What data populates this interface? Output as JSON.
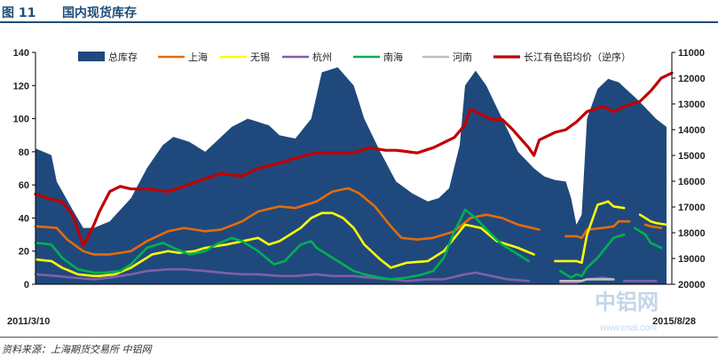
{
  "figure": {
    "number": "图 11",
    "title": "国内现货库存",
    "source": "资料来源：上海期货交易所    中铝网"
  },
  "watermark": {
    "brand": "中铝网",
    "url": "www.cnal.com"
  },
  "chart_data": {
    "type": "area",
    "title": "国内现货库存",
    "x_start_label": "2011/3/10",
    "x_end_label": "2015/8/28",
    "n_points": 121,
    "left_axis": {
      "ylim": [
        0,
        140
      ],
      "ticks": [
        0,
        20,
        40,
        60,
        80,
        100,
        120,
        140
      ]
    },
    "right_axis": {
      "ylim": [
        20000,
        11000
      ],
      "inverted": true,
      "ticks": [
        11000,
        12000,
        13000,
        14000,
        15000,
        16000,
        17000,
        18000,
        19000,
        20000
      ]
    },
    "colors": {
      "total": "#1f497d",
      "shanghai": "#e46c0a",
      "wuxi": "#ffff00",
      "hangzhou": "#7f5fa8",
      "nanhai": "#00b050",
      "henan": "#bfbfbf",
      "price": "#c00000",
      "axis": "#000000"
    },
    "series": [
      {
        "key": "total",
        "name": "总库存",
        "kind": "area",
        "axis": "left",
        "anchors": [
          [
            0,
            82
          ],
          [
            3,
            78
          ],
          [
            5,
            62
          ],
          [
            8,
            45
          ],
          [
            10,
            34
          ],
          [
            13,
            34
          ],
          [
            16,
            38
          ],
          [
            20,
            52
          ],
          [
            24,
            70
          ],
          [
            27,
            84
          ],
          [
            30,
            89
          ],
          [
            33,
            86
          ],
          [
            36,
            80
          ],
          [
            39,
            86
          ],
          [
            42,
            95
          ],
          [
            46,
            100
          ],
          [
            50,
            96
          ],
          [
            53,
            90
          ],
          [
            56,
            88
          ],
          [
            59,
            100
          ],
          [
            62,
            128
          ],
          [
            65,
            131
          ],
          [
            68,
            120
          ],
          [
            71,
            100
          ],
          [
            74,
            80
          ],
          [
            78,
            62
          ],
          [
            81,
            55
          ],
          [
            84,
            50
          ],
          [
            87,
            52
          ],
          [
            89,
            58
          ],
          [
            91,
            84
          ],
          [
            93,
            120
          ],
          [
            95,
            129
          ],
          [
            97,
            120
          ],
          [
            100,
            100
          ],
          [
            104,
            80
          ],
          [
            107,
            70
          ],
          [
            110,
            65
          ],
          [
            112,
            63
          ],
          [
            114,
            62
          ],
          [
            115,
            52
          ],
          [
            117,
            36
          ],
          [
            118,
            42
          ],
          [
            119,
            100
          ],
          [
            121,
            118
          ],
          [
            123,
            124
          ],
          [
            126,
            122
          ],
          [
            130,
            110
          ],
          [
            134,
            100
          ],
          [
            136,
            95
          ]
        ]
      },
      {
        "key": "shanghai",
        "name": "上海",
        "kind": "line",
        "axis": "left",
        "anchors": [
          [
            0,
            35
          ],
          [
            4,
            34
          ],
          [
            7,
            27
          ],
          [
            10,
            20
          ],
          [
            13,
            18
          ],
          [
            16,
            18
          ],
          [
            20,
            20
          ],
          [
            24,
            26
          ],
          [
            28,
            32
          ],
          [
            32,
            34
          ],
          [
            36,
            32
          ],
          [
            40,
            33
          ],
          [
            44,
            38
          ],
          [
            48,
            44
          ],
          [
            52,
            47
          ],
          [
            56,
            46
          ],
          [
            60,
            50
          ],
          [
            64,
            56
          ],
          [
            67,
            58
          ],
          [
            70,
            55
          ],
          [
            73,
            47
          ],
          [
            76,
            35
          ],
          [
            79,
            28
          ],
          [
            82,
            27
          ],
          [
            86,
            28
          ],
          [
            90,
            32
          ],
          [
            94,
            40
          ],
          [
            97,
            42
          ],
          [
            100,
            40
          ],
          [
            104,
            36
          ],
          [
            108,
            33
          ],
          [
            110,
            null
          ],
          [
            114,
            29
          ],
          [
            116,
            29
          ],
          [
            118,
            28
          ],
          [
            119,
            33
          ],
          [
            122,
            34
          ],
          [
            124,
            35
          ],
          [
            125,
            null
          ],
          [
            126,
            38
          ],
          [
            128,
            38
          ],
          [
            129,
            null
          ],
          [
            131,
            36
          ],
          [
            133,
            35
          ],
          [
            135,
            34
          ]
        ]
      },
      {
        "key": "wuxi",
        "name": "无锡",
        "kind": "line",
        "axis": "left",
        "anchors": [
          [
            0,
            15
          ],
          [
            3,
            14
          ],
          [
            6,
            10
          ],
          [
            9,
            6
          ],
          [
            12,
            5
          ],
          [
            14,
            5
          ],
          [
            17,
            6
          ],
          [
            21,
            10
          ],
          [
            25,
            18
          ],
          [
            28,
            20
          ],
          [
            31,
            19
          ],
          [
            34,
            20
          ],
          [
            37,
            22
          ],
          [
            41,
            24
          ],
          [
            45,
            26
          ],
          [
            48,
            28
          ],
          [
            50,
            24
          ],
          [
            53,
            26
          ],
          [
            57,
            34
          ],
          [
            59,
            40
          ],
          [
            62,
            43
          ],
          [
            64,
            43
          ],
          [
            66,
            40
          ],
          [
            68,
            34
          ],
          [
            71,
            24
          ],
          [
            74,
            15
          ],
          [
            77,
            10
          ],
          [
            80,
            13
          ],
          [
            84,
            14
          ],
          [
            86,
            16
          ],
          [
            88,
            20
          ],
          [
            91,
            32
          ],
          [
            93,
            36
          ],
          [
            96,
            34
          ],
          [
            99,
            26
          ],
          [
            102,
            24
          ],
          [
            104,
            22
          ],
          [
            107,
            18
          ],
          [
            108,
            null
          ],
          [
            112,
            14
          ],
          [
            114,
            14
          ],
          [
            116,
            14
          ],
          [
            118,
            13
          ],
          [
            119,
            30
          ],
          [
            121,
            48
          ],
          [
            123,
            50
          ],
          [
            124,
            null
          ],
          [
            125,
            47
          ],
          [
            127,
            46
          ],
          [
            128,
            null
          ],
          [
            130,
            42
          ],
          [
            132,
            38
          ],
          [
            133,
            null
          ],
          [
            134,
            37
          ],
          [
            136,
            36
          ]
        ]
      },
      {
        "key": "hangzhou",
        "name": "杭州",
        "kind": "line",
        "axis": "left",
        "anchors": [
          [
            0,
            6
          ],
          [
            4,
            5
          ],
          [
            8,
            4
          ],
          [
            12,
            3
          ],
          [
            16,
            4
          ],
          [
            20,
            6
          ],
          [
            24,
            8
          ],
          [
            28,
            9
          ],
          [
            32,
            9
          ],
          [
            36,
            8
          ],
          [
            40,
            7
          ],
          [
            44,
            6
          ],
          [
            48,
            6
          ],
          [
            52,
            5
          ],
          [
            56,
            5
          ],
          [
            60,
            6
          ],
          [
            64,
            5
          ],
          [
            68,
            5
          ],
          [
            72,
            4
          ],
          [
            76,
            3
          ],
          [
            80,
            2
          ],
          [
            84,
            3
          ],
          [
            88,
            3
          ],
          [
            92,
            6
          ],
          [
            95,
            7
          ],
          [
            98,
            5
          ],
          [
            102,
            3
          ],
          [
            106,
            2
          ],
          [
            108,
            null
          ],
          [
            113,
            1
          ],
          [
            116,
            1
          ],
          [
            118,
            2
          ],
          [
            119,
            3
          ],
          [
            122,
            4
          ],
          [
            124,
            3
          ],
          [
            125,
            null
          ],
          [
            127,
            2
          ],
          [
            130,
            2
          ],
          [
            134,
            2
          ]
        ]
      },
      {
        "key": "nanhai",
        "name": "南海",
        "kind": "line",
        "axis": "left",
        "anchors": [
          [
            0,
            25
          ],
          [
            3,
            24
          ],
          [
            6,
            16
          ],
          [
            9,
            9
          ],
          [
            12,
            7
          ],
          [
            15,
            7
          ],
          [
            18,
            8
          ],
          [
            21,
            12
          ],
          [
            24,
            22
          ],
          [
            27,
            25
          ],
          [
            30,
            22
          ],
          [
            33,
            18
          ],
          [
            36,
            20
          ],
          [
            39,
            24
          ],
          [
            42,
            28
          ],
          [
            45,
            26
          ],
          [
            48,
            20
          ],
          [
            51,
            12
          ],
          [
            54,
            14
          ],
          [
            57,
            24
          ],
          [
            59,
            26
          ],
          [
            61,
            22
          ],
          [
            63,
            18
          ],
          [
            65,
            14
          ],
          [
            68,
            8
          ],
          [
            71,
            6
          ],
          [
            74,
            4
          ],
          [
            77,
            3
          ],
          [
            80,
            4
          ],
          [
            83,
            6
          ],
          [
            86,
            8
          ],
          [
            88,
            16
          ],
          [
            90,
            32
          ],
          [
            92,
            44
          ],
          [
            93,
            45
          ],
          [
            95,
            40
          ],
          [
            98,
            30
          ],
          [
            101,
            24
          ],
          [
            104,
            18
          ],
          [
            106,
            14
          ],
          [
            108,
            null
          ],
          [
            113,
            8
          ],
          [
            115,
            4
          ],
          [
            117,
            6
          ],
          [
            118,
            5
          ],
          [
            119,
            10
          ],
          [
            121,
            16
          ],
          [
            123,
            24
          ],
          [
            125,
            28
          ],
          [
            127,
            30
          ],
          [
            128,
            null
          ],
          [
            129,
            34
          ],
          [
            131,
            30
          ],
          [
            132,
            null
          ],
          [
            133,
            25
          ],
          [
            135,
            22
          ]
        ]
      },
      {
        "key": "henan",
        "name": "河南",
        "kind": "line",
        "axis": "left",
        "anchors": [
          [
            0,
            null
          ],
          [
            112,
            null
          ],
          [
            113,
            2
          ],
          [
            118,
            2
          ],
          [
            119,
            3
          ],
          [
            124,
            3
          ],
          [
            125,
            null
          ]
        ]
      },
      {
        "key": "price",
        "name": "长江有色铝均价（逆序）",
        "kind": "line",
        "axis": "right",
        "anchors": [
          [
            0,
            16500
          ],
          [
            3,
            16700
          ],
          [
            6,
            16800
          ],
          [
            8,
            17300
          ],
          [
            10,
            18500
          ],
          [
            12,
            17700
          ],
          [
            14,
            17200
          ],
          [
            16,
            16400
          ],
          [
            18,
            16200
          ],
          [
            20,
            16300
          ],
          [
            24,
            16300
          ],
          [
            28,
            16400
          ],
          [
            32,
            16200
          ],
          [
            36,
            15900
          ],
          [
            40,
            15700
          ],
          [
            44,
            15800
          ],
          [
            48,
            15500
          ],
          [
            52,
            15300
          ],
          [
            56,
            15100
          ],
          [
            60,
            14900
          ],
          [
            64,
            14900
          ],
          [
            68,
            14900
          ],
          [
            72,
            14700
          ],
          [
            75,
            14800
          ],
          [
            78,
            14800
          ],
          [
            82,
            14900
          ],
          [
            86,
            14700
          ],
          [
            90,
            14300
          ],
          [
            92,
            13800
          ],
          [
            94,
            13200
          ],
          [
            96,
            13400
          ],
          [
            98,
            13600
          ],
          [
            100,
            13600
          ],
          [
            103,
            14000
          ],
          [
            106,
            14700
          ],
          [
            107,
            15000
          ],
          [
            109,
            14400
          ],
          [
            112,
            14100
          ],
          [
            114,
            14000
          ],
          [
            116,
            13700
          ],
          [
            119,
            13300
          ],
          [
            122,
            13100
          ],
          [
            124,
            13300
          ],
          [
            127,
            13100
          ],
          [
            130,
            12900
          ],
          [
            133,
            12500
          ],
          [
            135,
            12000
          ],
          [
            137,
            11800
          ]
        ]
      }
    ]
  }
}
